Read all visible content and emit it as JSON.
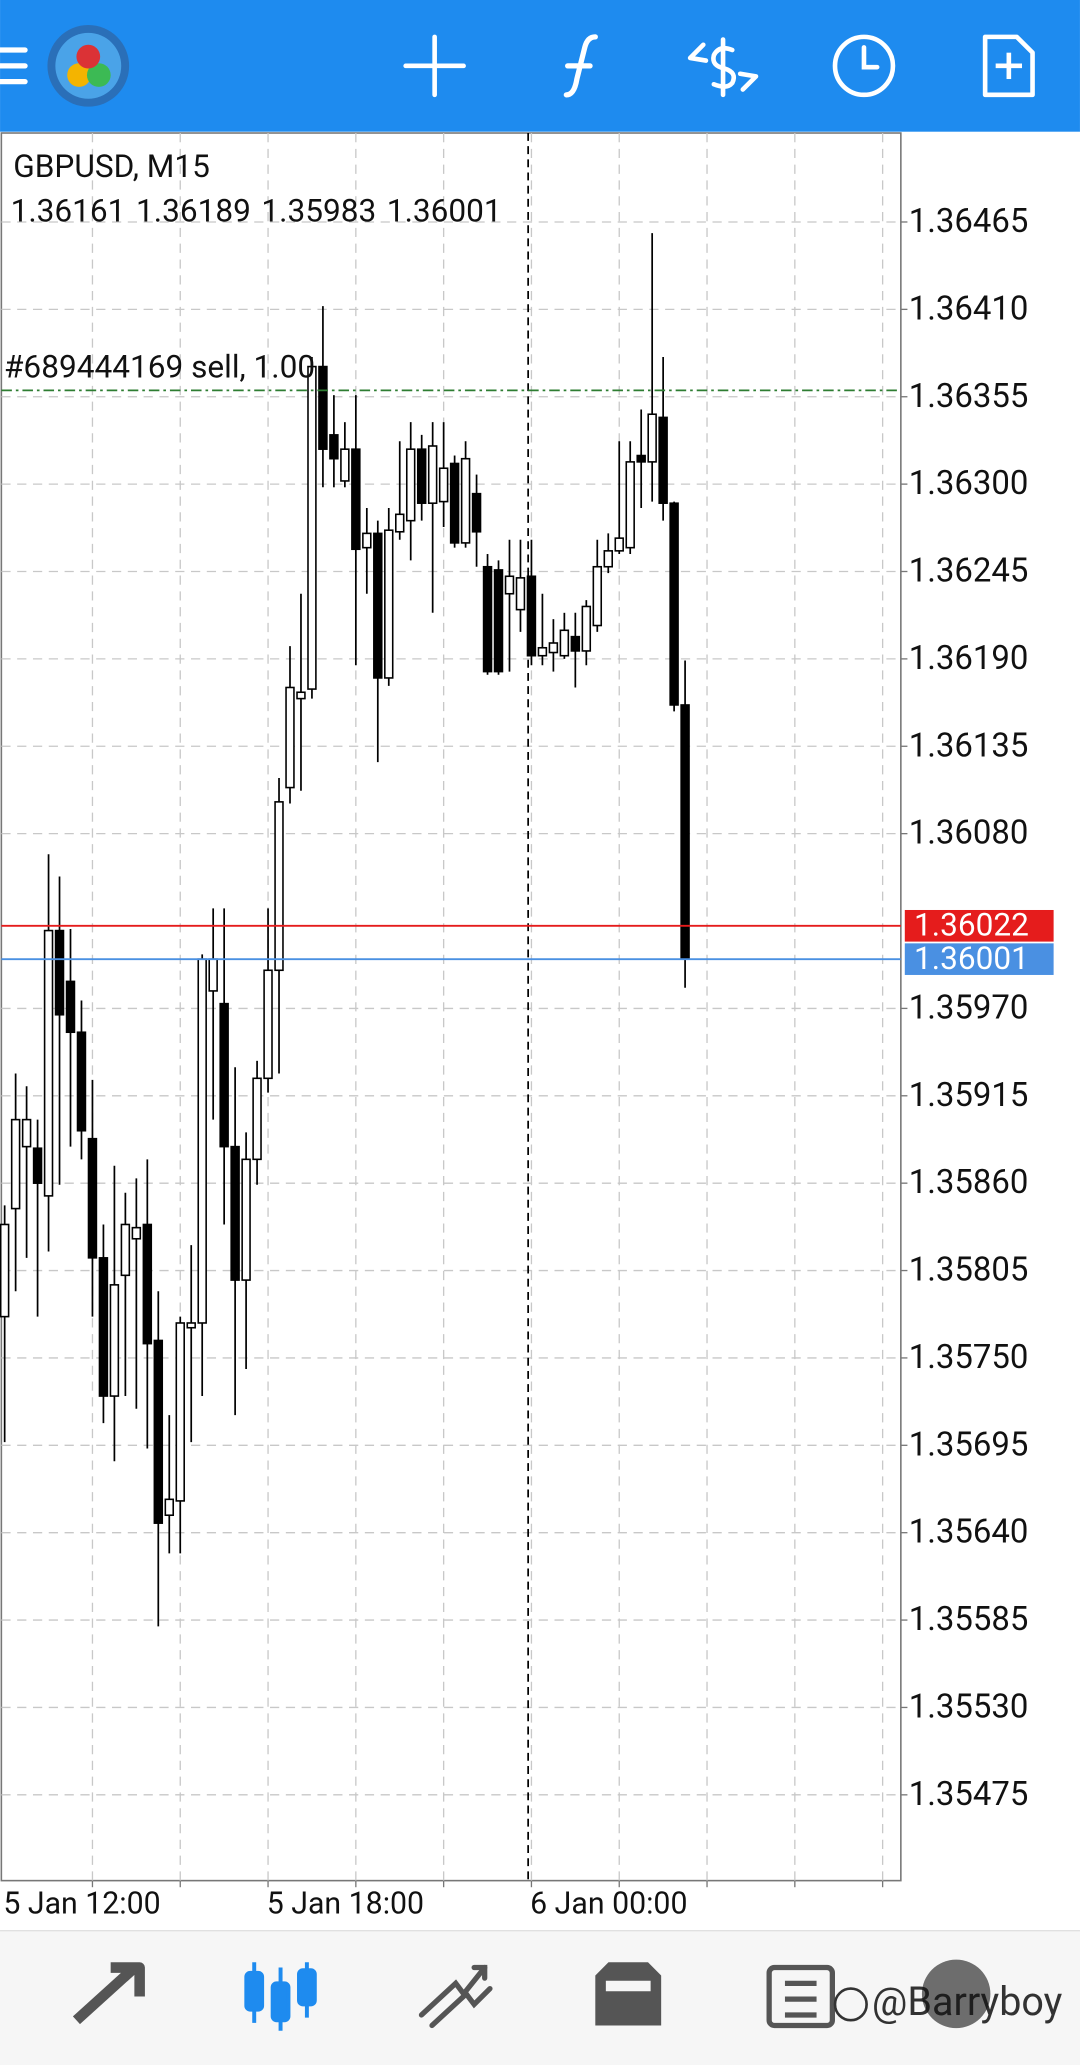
{
  "chart_data": {
    "type": "candlestick",
    "title": "GBPUSD, M15",
    "categories": [
      "5 Jan 12:00",
      null,
      null,
      null,
      null,
      null,
      null,
      null,
      null,
      null,
      null,
      null,
      null,
      null,
      null,
      null,
      null,
      null,
      null,
      null,
      null,
      null,
      null,
      null,
      "5 Jan 18:00",
      null,
      null,
      null,
      null,
      null,
      null,
      null,
      null,
      null,
      null,
      null,
      null,
      null,
      null,
      null,
      null,
      null,
      null,
      null,
      null,
      null,
      null,
      null,
      "6 Jan 00:00",
      null,
      null,
      null,
      null,
      null,
      null,
      null,
      null,
      null,
      null,
      null,
      null,
      null,
      null
    ],
    "open": [
      1.35776,
      1.35844,
      1.35883,
      1.35882,
      1.35852,
      1.36019,
      1.35987,
      1.35955,
      1.35888,
      1.35813,
      1.35726,
      1.35802,
      1.35825,
      1.35834,
      1.35761,
      1.35651,
      1.3566,
      1.35769,
      1.35772,
      1.35981,
      1.35973,
      1.35883,
      1.35799,
      1.35875,
      1.35926,
      1.35994,
      1.36109,
      1.36165,
      1.36171,
      1.36374,
      1.36331,
      1.36302,
      1.36322,
      1.3626,
      1.36269,
      1.36178,
      1.3627,
      1.36277,
      1.36322,
      1.36288,
      1.36289,
      1.36313,
      1.36263,
      1.36294,
      1.36248,
      1.36246,
      1.36231,
      1.36221,
      1.36242,
      1.36192,
      1.36194,
      1.36192,
      1.36204,
      1.36195,
      1.36211,
      1.36248,
      1.36258,
      1.3626,
      1.36318,
      1.36314,
      1.36342,
      1.36288,
      1.36161
    ],
    "high": [
      1.35846,
      1.35929,
      1.35921,
      1.359,
      1.36067,
      1.36053,
      1.3602,
      1.35975,
      1.35925,
      1.35834,
      1.35871,
      1.35854,
      1.35863,
      1.35875,
      1.35792,
      1.35714,
      1.35776,
      1.35821,
      1.36004,
      1.36033,
      1.36033,
      1.35933,
      1.35892,
      1.35937,
      1.36033,
      1.36115,
      1.36198,
      1.36231,
      1.3638,
      1.36412,
      1.36356,
      1.36339,
      1.36356,
      1.36285,
      1.36277,
      1.36285,
      1.36327,
      1.36339,
      1.36331,
      1.36339,
      1.36339,
      1.36318,
      1.36327,
      1.36306,
      1.36256,
      1.36252,
      1.36265,
      1.36265,
      1.36265,
      1.36231,
      1.36215,
      1.36219,
      1.36219,
      1.36227,
      1.36265,
      1.36269,
      1.36327,
      1.36327,
      1.36347,
      1.36458,
      1.3638,
      1.36289,
      1.36189
    ],
    "low": [
      1.35697,
      1.35792,
      1.35813,
      1.35776,
      1.35817,
      1.35859,
      1.35883,
      1.35875,
      1.35776,
      1.35709,
      1.35685,
      1.35726,
      1.35718,
      1.35693,
      1.35581,
      1.35627,
      1.35627,
      1.35697,
      1.35726,
      1.359,
      1.35834,
      1.35714,
      1.35743,
      1.35859,
      1.35917,
      1.35929,
      1.36099,
      1.36107,
      1.36165,
      1.36298,
      1.36298,
      1.36298,
      1.36186,
      1.36231,
      1.36125,
      1.36173,
      1.36265,
      1.36252,
      1.36277,
      1.36219,
      1.36273,
      1.3626,
      1.3626,
      1.36248,
      1.3618,
      1.3618,
      1.36182,
      1.36207,
      1.36186,
      1.36186,
      1.36182,
      1.3619,
      1.36172,
      1.36186,
      1.36207,
      1.36244,
      1.36256,
      1.36256,
      1.36285,
      1.36289,
      1.36277,
      1.36157,
      1.35983
    ],
    "close": [
      1.35834,
      1.359,
      1.359,
      1.3586,
      1.36019,
      1.35966,
      1.35955,
      1.35893,
      1.35813,
      1.35726,
      1.35796,
      1.35834,
      1.35832,
      1.35759,
      1.35646,
      1.35661,
      1.35772,
      1.35772,
      1.36001,
      1.36001,
      1.35883,
      1.35799,
      1.35875,
      1.35926,
      1.35994,
      1.361,
      1.36172,
      1.36169,
      1.36374,
      1.36322,
      1.36316,
      1.36322,
      1.36259,
      1.36269,
      1.36178,
      1.36271,
      1.36281,
      1.36322,
      1.36288,
      1.36324,
      1.3631,
      1.36263,
      1.36316,
      1.3627,
      1.36182,
      1.36182,
      1.36242,
      1.36241,
      1.36192,
      1.36197,
      1.362,
      1.36208,
      1.36195,
      1.36223,
      1.36248,
      1.36258,
      1.36266,
      1.36314,
      1.36314,
      1.36344,
      1.36288,
      1.36161,
      1.36001
    ],
    "up_color": "#ffffff",
    "down_color": "#000000",
    "wick_color": "#000000",
    "ylim": [
      1.35421,
      1.36521
    ],
    "yticks": [
      1.36465,
      {
        "value": 1.3641,
        "label": "1.36410"
      },
      1.36355,
      {
        "value": 1.363,
        "label": "1.36300"
      },
      1.36245,
      {
        "value": 1.3619,
        "label": "1.36190"
      },
      1.36135,
      {
        "value": 1.3608,
        "label": "1.36080"
      },
      {
        "value": 1.3597,
        "label": "1.35970"
      },
      1.35915,
      {
        "value": 1.3586,
        "label": "1.35860"
      },
      1.35805,
      {
        "value": 1.3575,
        "label": "1.35750"
      },
      1.35695,
      {
        "value": 1.3564,
        "label": "1.35640"
      },
      1.35585,
      {
        "value": 1.3553,
        "label": "1.35530"
      },
      1.35475
    ],
    "grid": true,
    "price_lines": [
      {
        "label": "#689444169 sell, 1.00",
        "value": 1.36359,
        "color": "#2e7d32"
      },
      {
        "value": 1.36022,
        "color": "#e51c1c"
      },
      {
        "value": 1.36001,
        "color": "#4a90e2"
      }
    ]
  },
  "watermark": "@Barryboy"
}
